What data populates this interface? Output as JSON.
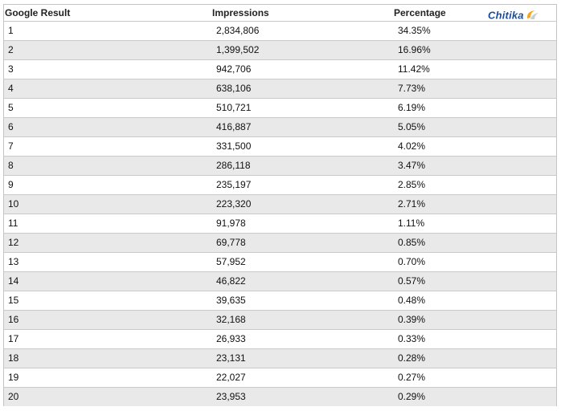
{
  "brand": {
    "logo_text": "Chitika",
    "logo_color": "#1d4e9a",
    "swoosh_color": "#f5a623"
  },
  "table": {
    "headers": {
      "rank": "Google Result",
      "impressions": "Impressions",
      "percentage": "Percentage"
    },
    "rows": [
      {
        "rank": "1",
        "impressions": "2,834,806",
        "percentage": "34.35%"
      },
      {
        "rank": "2",
        "impressions": "1,399,502",
        "percentage": "16.96%"
      },
      {
        "rank": "3",
        "impressions": "942,706",
        "percentage": "11.42%"
      },
      {
        "rank": "4",
        "impressions": "638,106",
        "percentage": "7.73%"
      },
      {
        "rank": "5",
        "impressions": "510,721",
        "percentage": "6.19%"
      },
      {
        "rank": "6",
        "impressions": "416,887",
        "percentage": "5.05%"
      },
      {
        "rank": "7",
        "impressions": "331,500",
        "percentage": "4.02%"
      },
      {
        "rank": "8",
        "impressions": "286,118",
        "percentage": "3.47%"
      },
      {
        "rank": "9",
        "impressions": "235,197",
        "percentage": "2.85%"
      },
      {
        "rank": "10",
        "impressions": "223,320",
        "percentage": "2.71%"
      },
      {
        "rank": "11",
        "impressions": "91,978",
        "percentage": "1.11%"
      },
      {
        "rank": "12",
        "impressions": "69,778",
        "percentage": "0.85%"
      },
      {
        "rank": "13",
        "impressions": "57,952",
        "percentage": "0.70%"
      },
      {
        "rank": "14",
        "impressions": "46,822",
        "percentage": "0.57%"
      },
      {
        "rank": "15",
        "impressions": "39,635",
        "percentage": "0.48%"
      },
      {
        "rank": "16",
        "impressions": "32,168",
        "percentage": "0.39%"
      },
      {
        "rank": "17",
        "impressions": "26,933",
        "percentage": "0.33%"
      },
      {
        "rank": "18",
        "impressions": "23,131",
        "percentage": "0.28%"
      },
      {
        "rank": "19",
        "impressions": "22,027",
        "percentage": "0.27%"
      },
      {
        "rank": "20",
        "impressions": "23,953",
        "percentage": "0.29%"
      }
    ]
  },
  "chart_data": {
    "type": "table",
    "columns": [
      "Google Result",
      "Impressions",
      "Percentage"
    ],
    "rows": [
      [
        1,
        2834806,
        34.35
      ],
      [
        2,
        1399502,
        16.96
      ],
      [
        3,
        942706,
        11.42
      ],
      [
        4,
        638106,
        7.73
      ],
      [
        5,
        510721,
        6.19
      ],
      [
        6,
        416887,
        5.05
      ],
      [
        7,
        331500,
        4.02
      ],
      [
        8,
        286118,
        3.47
      ],
      [
        9,
        235197,
        2.85
      ],
      [
        10,
        223320,
        2.71
      ],
      [
        11,
        91978,
        1.11
      ],
      [
        12,
        69778,
        0.85
      ],
      [
        13,
        57952,
        0.7
      ],
      [
        14,
        46822,
        0.57
      ],
      [
        15,
        39635,
        0.48
      ],
      [
        16,
        32168,
        0.39
      ],
      [
        17,
        26933,
        0.33
      ],
      [
        18,
        23131,
        0.28
      ],
      [
        19,
        22027,
        0.27
      ],
      [
        20,
        23953,
        0.29
      ]
    ]
  }
}
